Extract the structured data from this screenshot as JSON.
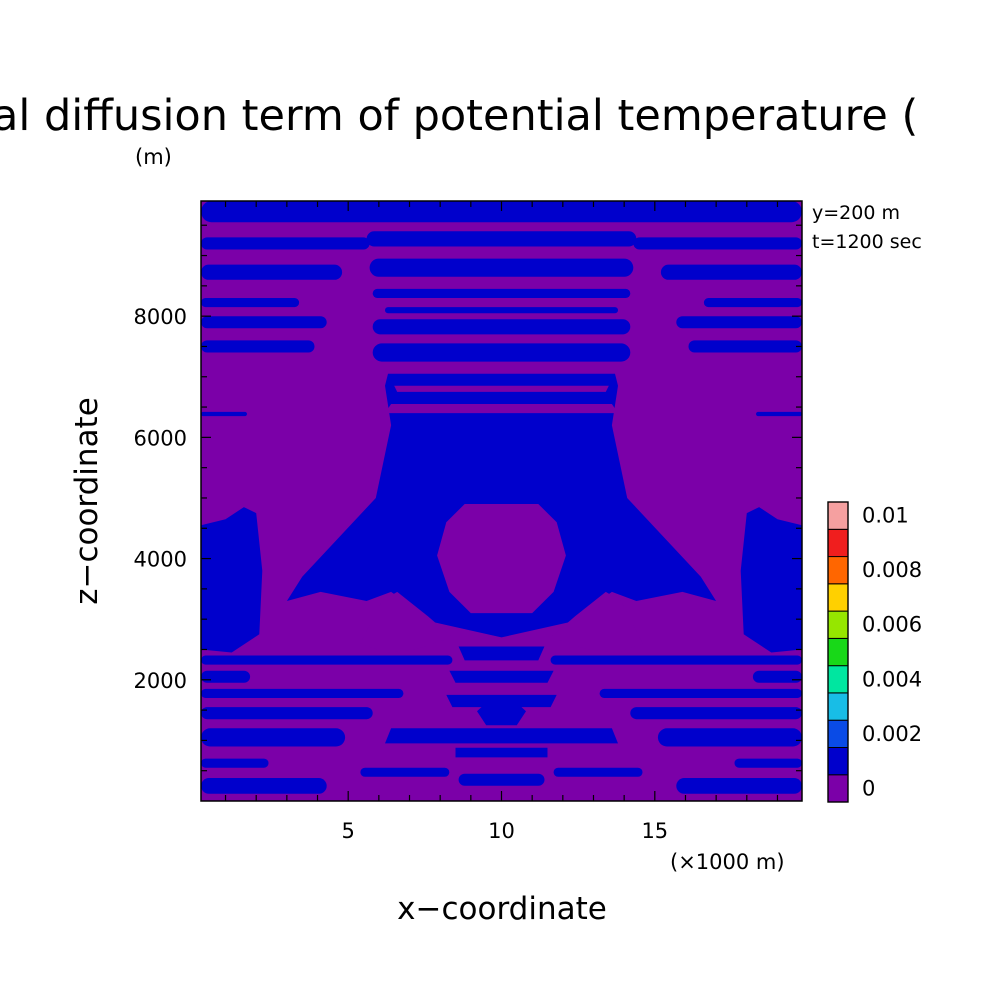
{
  "colors": {
    "purple": "#7b00a8",
    "blue": "#0000cc",
    "levels": [
      "#7b00a8",
      "#0000cc",
      "#0a4be6",
      "#18bde6",
      "#00e6a0",
      "#18d818",
      "#96e600",
      "#ffd000",
      "#ff6600",
      "#f01e1e",
      "#f5a0a0"
    ]
  },
  "chart_data": {
    "type": "heatmap",
    "title": "al diffusion term of potential temperature (",
    "xlabel": "x−coordinate",
    "ylabel": "z−coordinate",
    "x_unit": "(×1000 m)",
    "y_unit": "(m)",
    "xlim": [
      0.2,
      19.8
    ],
    "ylim": [
      0,
      9900
    ],
    "xticks": [
      5,
      10,
      15
    ],
    "yticks": [
      2000,
      4000,
      6000,
      8000
    ],
    "annotations": [
      "y=200 m",
      "t=1200 sec"
    ],
    "colorbar": {
      "levels": [
        0,
        0.001,
        0.002,
        0.003,
        0.004,
        0.005,
        0.006,
        0.007,
        0.008,
        0.009,
        0.01,
        0.011
      ],
      "labels": [
        "0",
        "0.002",
        "0.004",
        "0.006",
        "0.008",
        "0.01"
      ]
    },
    "background_level": 0,
    "regions": [
      {
        "level": 0.001,
        "polygon": [
          [
            5.9,
            5000
          ],
          [
            3.5,
            3700
          ],
          [
            3,
            3300
          ],
          [
            4.1,
            3450
          ],
          [
            5.6,
            3300
          ],
          [
            6.4,
            3450
          ],
          [
            7.8,
            2950
          ],
          [
            10,
            2700
          ],
          [
            12.2,
            2950
          ],
          [
            13.6,
            3450
          ],
          [
            14.4,
            3300
          ],
          [
            15.9,
            3450
          ],
          [
            17,
            3300
          ],
          [
            16.5,
            3700
          ],
          [
            14.1,
            5000
          ],
          [
            13.6,
            6200
          ],
          [
            13.8,
            6850
          ],
          [
            13.7,
            7050
          ],
          [
            6.3,
            7050
          ],
          [
            6.2,
            6850
          ],
          [
            6.4,
            6200
          ]
        ]
      },
      {
        "level": 0,
        "polygon": [
          [
            7.9,
            4050
          ],
          [
            8.2,
            4600
          ],
          [
            8.8,
            4900
          ],
          [
            11.2,
            4900
          ],
          [
            11.8,
            4600
          ],
          [
            12.1,
            4050
          ],
          [
            11.7,
            3450
          ],
          [
            11,
            3100
          ],
          [
            9,
            3100
          ],
          [
            8.3,
            3450
          ]
        ]
      },
      {
        "level": 0,
        "polygon": [
          [
            5.4,
            2600
          ],
          [
            6.1,
            3300
          ],
          [
            6.6,
            3450
          ],
          [
            7.6,
            3050
          ],
          [
            8.4,
            2700
          ],
          [
            7.2,
            2500
          ],
          [
            6.2,
            2450
          ]
        ]
      },
      {
        "level": 0,
        "polygon": [
          [
            14.6,
            2600
          ],
          [
            13.9,
            3300
          ],
          [
            13.4,
            3450
          ],
          [
            12.4,
            3050
          ],
          [
            11.6,
            2700
          ],
          [
            12.8,
            2500
          ],
          [
            13.8,
            2450
          ]
        ]
      },
      {
        "level": 0,
        "polygon": [
          [
            6.2,
            6400
          ],
          [
            13.8,
            6400
          ],
          [
            13.6,
            6550
          ],
          [
            6.4,
            6550
          ]
        ]
      },
      {
        "level": 0,
        "polygon": [
          [
            6.6,
            6750
          ],
          [
            13.4,
            6750
          ],
          [
            13.5,
            6850
          ],
          [
            6.5,
            6850
          ]
        ]
      },
      {
        "level": 0.001,
        "polygon": [
          [
            0.2,
            4550
          ],
          [
            1,
            4650
          ],
          [
            1.6,
            4850
          ],
          [
            2,
            4750
          ],
          [
            2.2,
            3800
          ],
          [
            2.1,
            2750
          ],
          [
            1.2,
            2450
          ],
          [
            0.2,
            2500
          ]
        ]
      },
      {
        "level": 0.001,
        "polygon": [
          [
            19.8,
            4550
          ],
          [
            19,
            4650
          ],
          [
            18.4,
            4850
          ],
          [
            18,
            4750
          ],
          [
            17.8,
            3800
          ],
          [
            17.9,
            2750
          ],
          [
            18.8,
            2450
          ],
          [
            19.8,
            2500
          ]
        ]
      },
      {
        "level": 0.001,
        "polygon": [
          [
            8.6,
            2550
          ],
          [
            11.4,
            2550
          ],
          [
            11.2,
            2320
          ],
          [
            8.8,
            2320
          ]
        ]
      },
      {
        "level": 0.001,
        "polygon": [
          [
            8.3,
            2150
          ],
          [
            11.7,
            2150
          ],
          [
            11.5,
            1950
          ],
          [
            8.5,
            1950
          ]
        ]
      },
      {
        "level": 0.001,
        "polygon": [
          [
            8.2,
            1750
          ],
          [
            11.8,
            1750
          ],
          [
            11.6,
            1550
          ],
          [
            8.4,
            1550
          ]
        ]
      },
      {
        "level": 0.001,
        "polygon": [
          [
            9.2,
            1480
          ],
          [
            9.5,
            1620
          ],
          [
            10.5,
            1620
          ],
          [
            10.8,
            1480
          ],
          [
            10.5,
            1250
          ],
          [
            9.5,
            1250
          ]
        ]
      },
      {
        "level": 0.001,
        "polygon": [
          [
            6.4,
            1200
          ],
          [
            13.6,
            1200
          ],
          [
            13.8,
            950
          ],
          [
            6.2,
            950
          ]
        ]
      },
      {
        "level": 0.001,
        "polygon": [
          [
            8.5,
            880
          ],
          [
            11.5,
            880
          ],
          [
            11.5,
            720
          ],
          [
            8.5,
            720
          ]
        ]
      }
    ],
    "bands": [
      {
        "level": 0.001,
        "z": [
          9550,
          9900
        ],
        "x": [
          0.2,
          19.8
        ]
      },
      {
        "level": 0.001,
        "z": [
          9100,
          9300
        ],
        "x": [
          0.2,
          5.7
        ]
      },
      {
        "level": 0.001,
        "z": [
          9100,
          9300
        ],
        "x": [
          14.3,
          19.8
        ]
      },
      {
        "level": 0.001,
        "z": [
          9150,
          9400
        ],
        "x": [
          5.6,
          14.4
        ]
      },
      {
        "level": 0.001,
        "z": [
          8600,
          8850
        ],
        "x": [
          0.2,
          4.8
        ]
      },
      {
        "level": 0.001,
        "z": [
          8600,
          8850
        ],
        "x": [
          15.2,
          19.8
        ]
      },
      {
        "level": 0.001,
        "z": [
          8650,
          8950
        ],
        "x": [
          5.7,
          14.3
        ]
      },
      {
        "level": 0.001,
        "z": [
          8300,
          8450
        ],
        "x": [
          5.8,
          14.2
        ]
      },
      {
        "level": 0.001,
        "z": [
          8150,
          8300
        ],
        "x": [
          0.2,
          3.4
        ]
      },
      {
        "level": 0.001,
        "z": [
          8150,
          8300
        ],
        "x": [
          16.6,
          19.8
        ]
      },
      {
        "level": 0.001,
        "z": [
          8050,
          8150
        ],
        "x": [
          6.2,
          13.8
        ]
      },
      {
        "level": 0.001,
        "z": [
          7800,
          8000
        ],
        "x": [
          0.2,
          4.3
        ]
      },
      {
        "level": 0.001,
        "z": [
          7800,
          8000
        ],
        "x": [
          15.7,
          19.8
        ]
      },
      {
        "level": 0.001,
        "z": [
          7700,
          7950
        ],
        "x": [
          5.8,
          14.2
        ]
      },
      {
        "level": 0.001,
        "z": [
          7400,
          7600
        ],
        "x": [
          0.2,
          3.9
        ]
      },
      {
        "level": 0.001,
        "z": [
          7400,
          7600
        ],
        "x": [
          16.1,
          19.8
        ]
      },
      {
        "level": 0.001,
        "z": [
          7250,
          7550
        ],
        "x": [
          5.8,
          14.2
        ]
      },
      {
        "level": 0.001,
        "z": [
          6350,
          6420
        ],
        "x": [
          0.2,
          1.7
        ]
      },
      {
        "level": 0.001,
        "z": [
          6350,
          6420
        ],
        "x": [
          18.3,
          19.8
        ]
      },
      {
        "level": 0.001,
        "z": [
          2250,
          2400
        ],
        "x": [
          0.2,
          8.4
        ]
      },
      {
        "level": 0.001,
        "z": [
          2250,
          2400
        ],
        "x": [
          11.6,
          19.8
        ]
      },
      {
        "level": 0.001,
        "z": [
          1950,
          2150
        ],
        "x": [
          0.2,
          1.8
        ]
      },
      {
        "level": 0.001,
        "z": [
          1950,
          2150
        ],
        "x": [
          18.2,
          19.8
        ]
      },
      {
        "level": 0.001,
        "z": [
          1700,
          1850
        ],
        "x": [
          0.2,
          6.8
        ]
      },
      {
        "level": 0.001,
        "z": [
          1700,
          1850
        ],
        "x": [
          13.2,
          19.8
        ]
      },
      {
        "level": 0.001,
        "z": [
          1350,
          1550
        ],
        "x": [
          0.2,
          5.8
        ]
      },
      {
        "level": 0.001,
        "z": [
          1350,
          1550
        ],
        "x": [
          14.2,
          19.8
        ]
      },
      {
        "level": 0.001,
        "z": [
          900,
          1200
        ],
        "x": [
          0.2,
          4.9
        ]
      },
      {
        "level": 0.001,
        "z": [
          900,
          1200
        ],
        "x": [
          15.1,
          19.8
        ]
      },
      {
        "level": 0.001,
        "z": [
          550,
          700
        ],
        "x": [
          0.2,
          2.4
        ]
      },
      {
        "level": 0.001,
        "z": [
          550,
          700
        ],
        "x": [
          17.6,
          19.8
        ]
      },
      {
        "level": 0.001,
        "z": [
          400,
          550
        ],
        "x": [
          5.4,
          8.3
        ]
      },
      {
        "level": 0.001,
        "z": [
          400,
          550
        ],
        "x": [
          11.7,
          14.6
        ]
      },
      {
        "level": 0.001,
        "z": [
          120,
          380
        ],
        "x": [
          0.2,
          4.3
        ]
      },
      {
        "level": 0.001,
        "z": [
          120,
          380
        ],
        "x": [
          15.7,
          19.8
        ]
      },
      {
        "level": 0.001,
        "z": [
          250,
          450
        ],
        "x": [
          8.6,
          11.4
        ]
      }
    ]
  }
}
